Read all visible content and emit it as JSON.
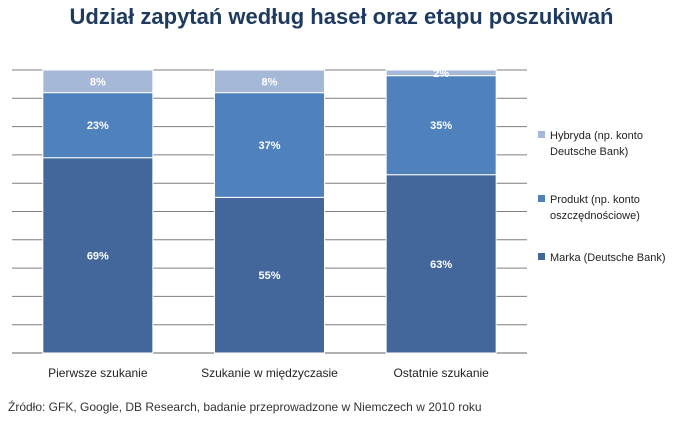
{
  "chart_data": {
    "type": "bar",
    "stacked": true,
    "title": "Udział zapytań według haseł oraz etapu poszukiwań",
    "categories": [
      "Pierwsze szukanie",
      "Szukanie w międzyczasie",
      "Ostatnie szukanie"
    ],
    "series": [
      {
        "name": "Marka (Deutsche Bank)",
        "values": [
          69,
          55,
          63
        ],
        "labels": [
          "69%",
          "55%",
          "63%"
        ],
        "color": "#43679a"
      },
      {
        "name": "Produkt (np. konto oszczędnościowe)",
        "values": [
          23,
          37,
          35
        ],
        "labels": [
          "23%",
          "37%",
          "35%"
        ],
        "color": "#4f81bd"
      },
      {
        "name": "Hybryda (np. konto Deutsche Bank)",
        "values": [
          8,
          8,
          2
        ],
        "labels": [
          "8%",
          "8%",
          "2%"
        ],
        "color": "#a6b8d8"
      }
    ],
    "ylim": [
      0,
      100
    ],
    "grid": true,
    "legend": "right"
  },
  "legend": {
    "items": [
      {
        "line1": "Hybryda (np. konto",
        "line2": "Deutsche Bank)",
        "color": "#a6b8d8"
      },
      {
        "line1": "Produkt (np. konto",
        "line2": "oszczędnościowe)",
        "color": "#4f81bd"
      },
      {
        "line1": "Marka (Deutsche Bank)",
        "line2": "",
        "color": "#43679a"
      }
    ]
  },
  "source": "Źródło: GFK, Google, DB Research, badanie przeprowadzone w Niemczech w 2010 roku"
}
